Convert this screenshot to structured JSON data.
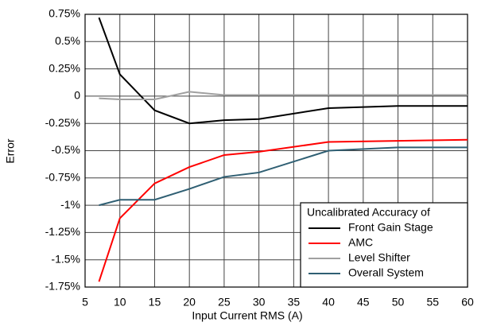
{
  "chart_data": {
    "type": "line",
    "x_label": "Input Current RMS (A)",
    "y_label": "Error",
    "legend_title": "Uncalibrated Accuracy of",
    "legend": "lower right",
    "grid": true,
    "x": [
      7,
      10,
      15,
      20,
      25,
      30,
      40,
      50,
      60
    ],
    "series": [
      {
        "name": "Front Gain Stage",
        "color": "#000000",
        "values": [
          0.72,
          0.2,
          -0.13,
          -0.25,
          -0.22,
          -0.21,
          -0.11,
          -0.09,
          -0.09
        ]
      },
      {
        "name": "AMC",
        "color": "#ff0000",
        "values": [
          -1.7,
          -1.12,
          -0.8,
          -0.65,
          -0.54,
          -0.51,
          -0.42,
          -0.41,
          -0.4
        ]
      },
      {
        "name": "Level Shifter",
        "color": "#a0a0a0",
        "values": [
          -0.02,
          -0.03,
          -0.03,
          0.04,
          0.01,
          0.01,
          0.01,
          0.01,
          0.01
        ]
      },
      {
        "name": "Overall System",
        "color": "#2f5f73",
        "values": [
          -1.0,
          -0.95,
          -0.95,
          -0.85,
          -0.74,
          -0.7,
          -0.5,
          -0.47,
          -0.47
        ]
      }
    ],
    "xlim": [
      5,
      60
    ],
    "xticks": [
      5,
      10,
      15,
      20,
      25,
      30,
      35,
      40,
      45,
      50,
      55,
      60
    ],
    "ylim": [
      -1.75,
      0.75
    ],
    "yticks": [
      {
        "value": 0.75,
        "label": "0.75%"
      },
      {
        "value": 0.5,
        "label": "0.5%"
      },
      {
        "value": 0.25,
        "label": "0.25%"
      },
      0,
      {
        "value": -0.25,
        "label": "-0.25%"
      },
      {
        "value": -0.5,
        "label": "-0.5%"
      },
      {
        "value": -0.75,
        "label": "-0.75%"
      },
      {
        "value": -1,
        "label": "-1%"
      },
      {
        "value": -1.25,
        "label": "-1.25%"
      },
      {
        "value": -1.5,
        "label": "-1.5%"
      },
      {
        "value": -1.75,
        "label": "-1.75%"
      }
    ]
  }
}
